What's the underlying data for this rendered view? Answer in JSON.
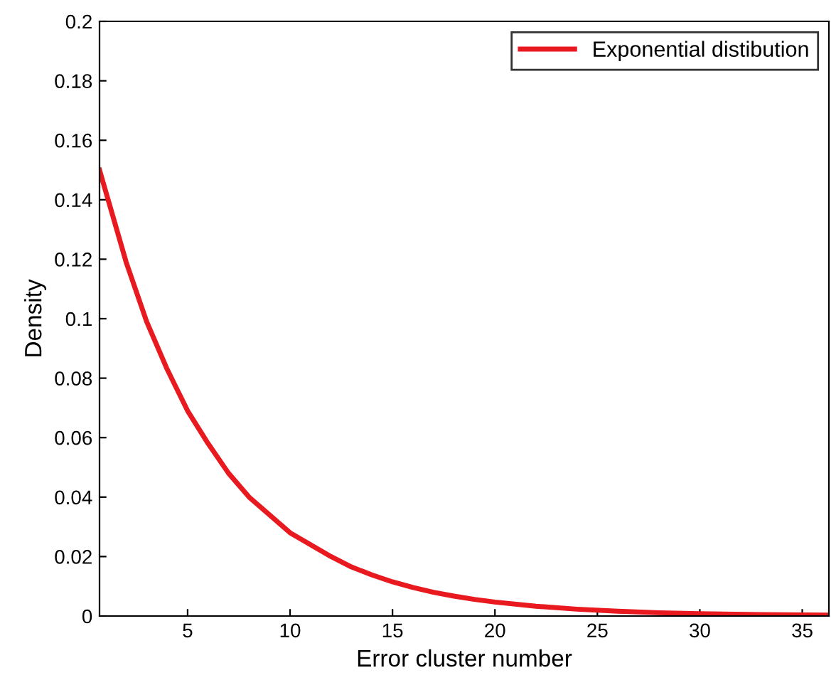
{
  "chart_data": {
    "type": "line",
    "xlabel": "Error cluster number",
    "ylabel": "Density",
    "xlim": [
      0.7,
      36.3
    ],
    "ylim": [
      0,
      0.2
    ],
    "xticks": [
      5,
      10,
      15,
      20,
      25,
      30,
      35
    ],
    "yticks": [
      0,
      0.02,
      0.04,
      0.06,
      0.08,
      0.1,
      0.12,
      0.14,
      0.16,
      0.18,
      0.2
    ],
    "grid": false,
    "legend": "top right",
    "marker": "none",
    "line_style": "solid",
    "series": [
      {
        "name": "Exponential distibution",
        "color": "#e8191f",
        "x": [
          0.7,
          2,
          3,
          4,
          5,
          6,
          7,
          8,
          9,
          10,
          11,
          12,
          13,
          14,
          15,
          16,
          17,
          18,
          19,
          20,
          22,
          24,
          26,
          28,
          30,
          33,
          36.3
        ],
        "values": [
          0.15,
          0.119,
          0.099,
          0.083,
          0.069,
          0.058,
          0.048,
          0.04,
          0.034,
          0.028,
          0.024,
          0.02,
          0.0165,
          0.0138,
          0.0115,
          0.0096,
          0.008,
          0.0067,
          0.0056,
          0.0047,
          0.0033,
          0.0023,
          0.0016,
          0.0011,
          0.0008,
          0.0005,
          0.0003
        ]
      }
    ]
  }
}
